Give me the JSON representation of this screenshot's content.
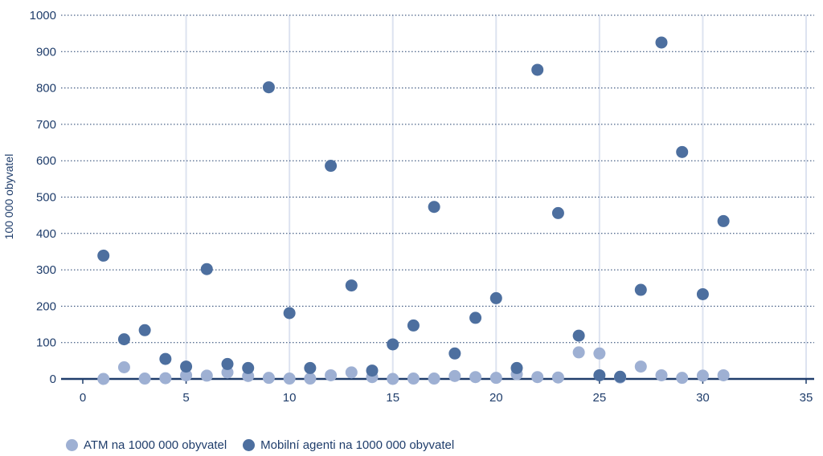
{
  "chart_data": {
    "type": "scatter",
    "title": "",
    "xlabel": "",
    "ylabel": "100 000 obyvatel",
    "xlim": [
      0,
      35
    ],
    "ylim": [
      0,
      1000
    ],
    "x_ticks": [
      0,
      5,
      10,
      15,
      20,
      25,
      30,
      35
    ],
    "y_ticks": [
      0,
      100,
      200,
      300,
      400,
      500,
      600,
      700,
      800,
      900,
      1000
    ],
    "grid": "horizontal dotted",
    "legend": "bottom-left",
    "series": [
      {
        "name": "ATM na 1000 000 obyvatel",
        "color": "#9eb0d3",
        "points": [
          [
            1,
            0
          ],
          [
            2,
            32
          ],
          [
            3,
            1
          ],
          [
            4,
            2
          ],
          [
            5,
            10
          ],
          [
            6,
            9
          ],
          [
            7,
            18
          ],
          [
            8,
            8
          ],
          [
            9,
            3
          ],
          [
            10,
            1
          ],
          [
            11,
            1
          ],
          [
            12,
            10
          ],
          [
            13,
            18
          ],
          [
            14,
            5
          ],
          [
            15,
            0
          ],
          [
            16,
            1
          ],
          [
            17,
            1
          ],
          [
            18,
            8
          ],
          [
            19,
            5
          ],
          [
            20,
            3
          ],
          [
            21,
            13
          ],
          [
            22,
            5
          ],
          [
            23,
            4
          ],
          [
            24,
            73
          ],
          [
            25,
            70
          ],
          [
            26,
            4
          ],
          [
            27,
            34
          ],
          [
            28,
            10
          ],
          [
            29,
            3
          ],
          [
            30,
            9
          ],
          [
            31,
            10
          ]
        ]
      },
      {
        "name": "Mobilní agenti na 1000 000 obyvatel",
        "color": "#4d6f9f",
        "points": [
          [
            1,
            339
          ],
          [
            2,
            109
          ],
          [
            3,
            134
          ],
          [
            4,
            55
          ],
          [
            5,
            34
          ],
          [
            6,
            302
          ],
          [
            7,
            41
          ],
          [
            8,
            30
          ],
          [
            9,
            802
          ],
          [
            10,
            181
          ],
          [
            11,
            30
          ],
          [
            12,
            586
          ],
          [
            13,
            257
          ],
          [
            14,
            23
          ],
          [
            15,
            95
          ],
          [
            16,
            147
          ],
          [
            17,
            473
          ],
          [
            18,
            70
          ],
          [
            19,
            168
          ],
          [
            20,
            222
          ],
          [
            21,
            30
          ],
          [
            22,
            850
          ],
          [
            23,
            456
          ],
          [
            24,
            119
          ],
          [
            25,
            10
          ],
          [
            26,
            6
          ],
          [
            27,
            245
          ],
          [
            28,
            925
          ],
          [
            29,
            624
          ],
          [
            30,
            233
          ],
          [
            31,
            434
          ]
        ]
      }
    ]
  }
}
